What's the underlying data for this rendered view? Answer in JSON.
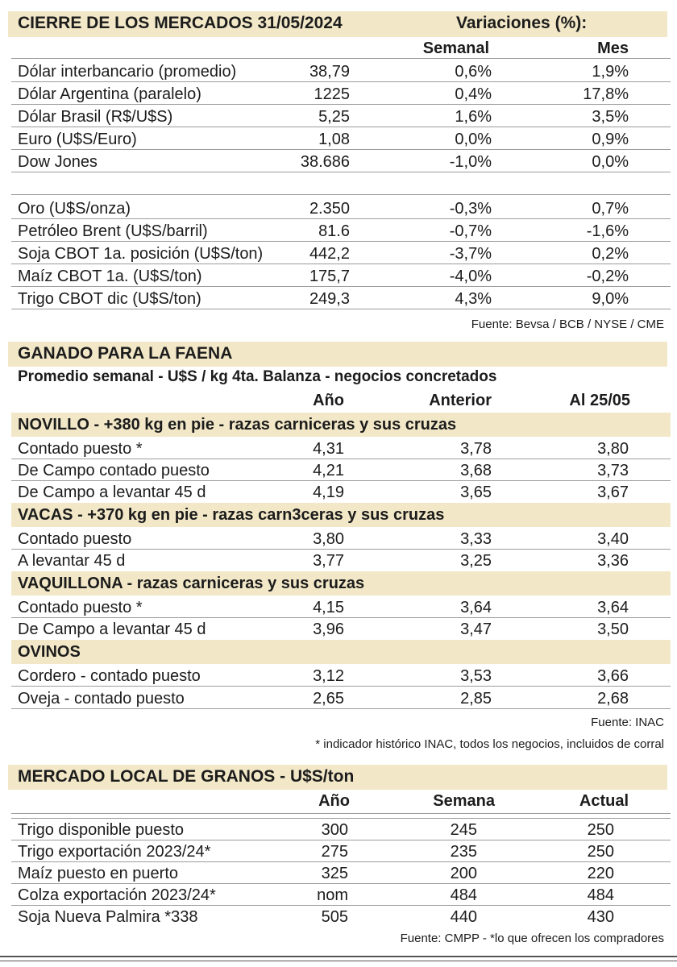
{
  "markets": {
    "title": "CIERRE DE LOS MERCADOS 31/05/2024",
    "variations_label": "Variaciones (%):",
    "col_weekly": "Semanal",
    "col_month": "Mes",
    "group1": [
      {
        "label": "Dólar interbancario (promedio)",
        "value": "38,79",
        "weekly": "0,6%",
        "month": "1,9%"
      },
      {
        "label": "Dólar Argentina (paralelo)",
        "value": "1225",
        "weekly": "0,4%",
        "month": "17,8%"
      },
      {
        "label": "Dólar Brasil (R$/U$S)",
        "value": "5,25",
        "weekly": "1,6%",
        "month": "3,5%"
      },
      {
        "label": "Euro (U$S/Euro)",
        "value": "1,08",
        "weekly": "0,0%",
        "month": "0,9%"
      },
      {
        "label": "Dow Jones",
        "value": "38.686",
        "weekly": "-1,0%",
        "month": "0,0%"
      }
    ],
    "group2": [
      {
        "label": "Oro (U$S/onza)",
        "value": "2.350",
        "weekly": "-0,3%",
        "month": "0,7%"
      },
      {
        "label": "Petróleo Brent (U$S/barril)",
        "value": "81.6",
        "weekly": "-0,7%",
        "month": "-1,6%"
      },
      {
        "label": "Soja CBOT 1a. posición (U$S/ton)",
        "value": "442,2",
        "weekly": "-3,7%",
        "month": "0,2%"
      },
      {
        "label": "Maíz CBOT 1a. (U$S/ton)",
        "value": "175,7",
        "weekly": "-4,0%",
        "month": "-0,2%"
      },
      {
        "label": "Trigo CBOT dic (U$S/ton)",
        "value": "249,3",
        "weekly": "4,3%",
        "month": "9,0%"
      }
    ],
    "source": "Fuente: Bevsa / BCB / NYSE / CME"
  },
  "cattle": {
    "title": "GANADO PARA LA FAENA",
    "subtitle": "Promedio semanal - U$S / kg 4ta. Balanza - negocios concretados",
    "col_year": "Año",
    "col_prev": "Anterior",
    "col_current": "Al 25/05",
    "sections": [
      {
        "title": "NOVILLO - +380 kg en pie - razas carniceras y sus cruzas",
        "rows": [
          {
            "label": "Contado puesto *",
            "year": "4,31",
            "prev": "3,78",
            "current": "3,80"
          },
          {
            "label": "De Campo contado puesto",
            "year": "4,21",
            "prev": "3,68",
            "current": "3,73"
          },
          {
            "label": "De Campo a levantar 45 d",
            "year": "4,19",
            "prev": "3,65",
            "current": "3,67"
          }
        ]
      },
      {
        "title": "VACAS - +370 kg en pie - razas carn3ceras y sus cruzas",
        "rows": [
          {
            "label": "Contado puesto",
            "year": "3,80",
            "prev": "3,33",
            "current": "3,40"
          },
          {
            "label": "A levantar 45 d",
            "year": "3,77",
            "prev": "3,25",
            "current": "3,36"
          }
        ]
      },
      {
        "title": "VAQUILLONA - razas carniceras y sus cruzas",
        "rows": [
          {
            "label": "Contado puesto *",
            "year": "4,15",
            "prev": "3,64",
            "current": "3,64"
          },
          {
            "label": "De Campo a levantar 45 d",
            "year": "3,96",
            "prev": "3,47",
            "current": "3,50"
          }
        ]
      },
      {
        "title": "OVINOS",
        "rows": [
          {
            "label": "Cordero - contado puesto",
            "year": "3,12",
            "prev": "3,53",
            "current": "3,66"
          },
          {
            "label": "Oveja - contado puesto",
            "year": "2,65",
            "prev": "2,85",
            "current": "2,68"
          }
        ]
      }
    ],
    "source": "Fuente: INAC",
    "note": "* indicador histórico INAC, todos los negocios, incluidos de corral"
  },
  "grains": {
    "title": "MERCADO LOCAL DE GRANOS - U$S/ton",
    "col_year": "Año",
    "col_week": "Semana",
    "col_current": "Actual",
    "rows": [
      {
        "label": "Trigo disponible puesto",
        "year": "300",
        "week": "245",
        "current": "250"
      },
      {
        "label": "Trigo exportación 2023/24*",
        "year": "275",
        "week": "235",
        "current": "250"
      },
      {
        "label": "Maíz puesto en puerto",
        "year": "325",
        "week": "200",
        "current": "220"
      },
      {
        "label": "Colza exportación 2023/24*",
        "year": "nom",
        "week": "484",
        "current": "484"
      },
      {
        "label": "Soja Nueva Palmira *338",
        "year": "505",
        "week": "440",
        "current": "430"
      }
    ],
    "source": "Fuente: CMPP - *lo que ofrecen los compradores"
  }
}
